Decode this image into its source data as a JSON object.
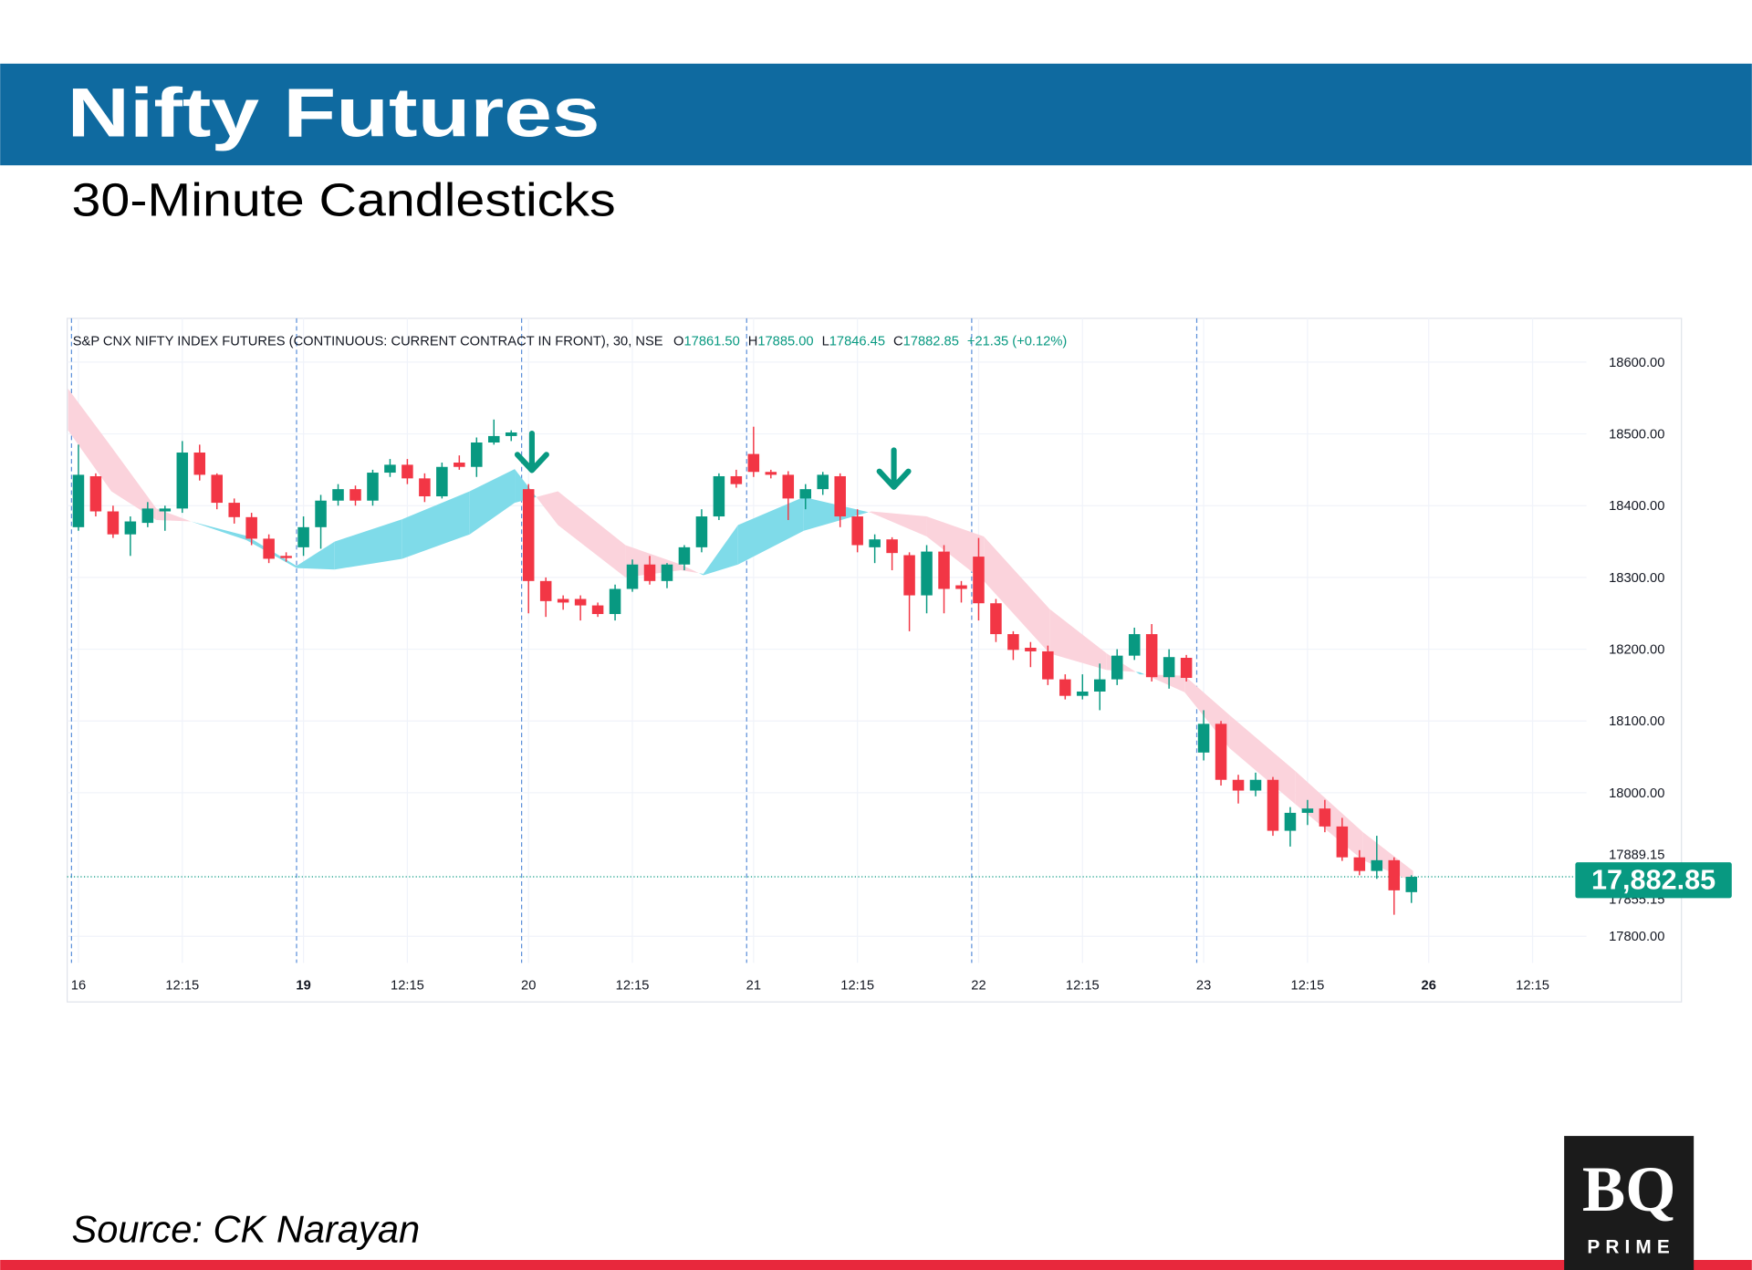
{
  "chart_data": {
    "type": "candlestick",
    "title": "Nifty Futures",
    "subtitle": "30-Minute Candlesticks",
    "instrument": "S&P CNX NIFTY INDEX FUTURES (CONTINUOUS: CURRENT CONTRACT IN FRONT), 30, NSE",
    "ohlc_legend": [
      {
        "label": "O",
        "value": "17861.50"
      },
      {
        "label": "H",
        "value": "17885.00"
      },
      {
        "label": "L",
        "value": "17846.45"
      },
      {
        "label": "C",
        "value": "17882.85"
      }
    ],
    "change": "+21.35 (+0.12%)",
    "up_color": "#089981",
    "down_color": "#f23645",
    "open": [
      18370,
      18441,
      18392,
      18360,
      18376,
      18392,
      18396,
      18474,
      18443,
      18404,
      18384,
      18354,
      18330,
      18342,
      18370,
      18407,
      18423,
      18407,
      18446,
      18457,
      18438,
      18413,
      18460,
      18454,
      18488,
      18497,
      18423,
      18295,
      18270,
      18270,
      18261,
      18249,
      18284,
      18318,
      18295,
      18318,
      18342,
      18385,
      18441,
      18472,
      18447,
      18443,
      18410,
      18423,
      18441,
      18385,
      18342,
      18353,
      18331,
      18275,
      18336,
      18289,
      18329,
      18264,
      18221,
      18202,
      18197,
      18158,
      18135,
      18141,
      18158,
      18191,
      18221,
      18161,
      18188,
      18056,
      18096,
      18018,
      18003,
      18018,
      17947,
      17972,
      17978,
      17953,
      17910,
      17891,
      17906,
      17861.5
    ],
    "high": [
      18485,
      18445,
      18400,
      18385,
      18405,
      18400,
      18490,
      18485,
      18445,
      18410,
      18390,
      18360,
      18335,
      18385,
      18415,
      18430,
      18428,
      18450,
      18465,
      18465,
      18445,
      18460,
      18470,
      18495,
      18520,
      18505,
      18430,
      18300,
      18275,
      18275,
      18265,
      18290,
      18325,
      18330,
      18320,
      18345,
      18395,
      18445,
      18450,
      18510,
      18450,
      18448,
      18430,
      18447,
      18445,
      18395,
      18360,
      18356,
      18335,
      18345,
      18345,
      18295,
      18355,
      18270,
      18225,
      18210,
      18205,
      18165,
      18165,
      18180,
      18200,
      18230,
      18235,
      18200,
      18192,
      18115,
      18100,
      18025,
      18028,
      18022,
      17980,
      17990,
      17990,
      17965,
      17920,
      17940,
      17910,
      17885
    ],
    "low": [
      18365,
      18385,
      18355,
      18330,
      18370,
      18365,
      18390,
      18435,
      18395,
      18375,
      18345,
      18320,
      18322,
      18330,
      18340,
      18400,
      18400,
      18400,
      18440,
      18430,
      18405,
      18410,
      18450,
      18440,
      18485,
      18490,
      18250,
      18245,
      18255,
      18240,
      18245,
      18240,
      18280,
      18290,
      18285,
      18310,
      18335,
      18380,
      18425,
      18440,
      18438,
      18380,
      18395,
      18415,
      18370,
      18335,
      18320,
      18310,
      18225,
      18250,
      18250,
      18265,
      18240,
      18210,
      18185,
      18175,
      18150,
      18130,
      18130,
      18115,
      18150,
      18185,
      18155,
      18145,
      18155,
      18045,
      18010,
      17985,
      17995,
      17940,
      17925,
      17955,
      17945,
      17905,
      17885,
      17880,
      17830,
      17846.45
    ],
    "close": [
      18443,
      18392,
      18360,
      18378,
      18396,
      18396,
      18474,
      18443,
      18404,
      18384,
      18354,
      18326,
      18327,
      18370,
      18407,
      18423,
      18407,
      18446,
      18457,
      18438,
      18413,
      18454,
      18454,
      18488,
      18497,
      18502,
      18295,
      18267,
      18265,
      18261,
      18249,
      18284,
      18318,
      18295,
      18318,
      18342,
      18385,
      18441,
      18430,
      18447,
      18443,
      18410,
      18423,
      18443,
      18385,
      18345,
      18353,
      18334,
      18275,
      18336,
      18284,
      18284,
      18264,
      18221,
      18199,
      18197,
      18158,
      18135,
      18141,
      18158,
      18191,
      18221,
      18161,
      18189,
      18160,
      18096,
      18018,
      18003,
      18018,
      17947,
      17972,
      17978,
      17953,
      17910,
      17891,
      17906,
      17864,
      17882.85
    ],
    "ribbon": {
      "x": [
        -0.6,
        1.9,
        4.5,
        6.5,
        9.7,
        12.6,
        14.8,
        18.7,
        22.6,
        25.2,
        27.7,
        31.6,
        34.8,
        36.1,
        38.1,
        41.9,
        45.8,
        49.0,
        52.3,
        56.1,
        59.4,
        61.3,
        63.9,
        66.5,
        70.3,
        74.2,
        77.1
      ],
      "fast": [
        18505,
        18420,
        18380,
        18378,
        18358,
        18316,
        18350,
        18381,
        18420,
        18451,
        18373,
        18300,
        18310,
        18305,
        18373,
        18412,
        18390,
        18357,
        18295,
        18194,
        18171,
        18168,
        18140,
        18062,
        17984,
        17906,
        17876
      ],
      "slow": [
        18563,
        18482,
        18396,
        18378,
        18352,
        18313,
        18311,
        18326,
        18360,
        18404,
        18420,
        18345,
        18318,
        18303,
        18318,
        18365,
        18392,
        18385,
        18357,
        18256,
        18194,
        18165,
        18163,
        18108,
        18030,
        17945,
        17891
      ],
      "up_color": "#7fdbe9",
      "down_color": "#fbd3dc"
    },
    "xlim": [
      -0.65,
      92.6
    ],
    "ylim": [
      17763,
      18661
    ],
    "xticks": [
      {
        "value": 0,
        "label": "16"
      },
      {
        "value": 6,
        "label": "12:15"
      },
      {
        "value": 13,
        "label": "19"
      },
      {
        "value": 19,
        "label": "12:15"
      },
      {
        "value": 26,
        "label": "20"
      },
      {
        "value": 32,
        "label": "12:15"
      },
      {
        "value": 39,
        "label": "21"
      },
      {
        "value": 45,
        "label": "12:15"
      },
      {
        "value": 52,
        "label": "22"
      },
      {
        "value": 58,
        "label": "12:15"
      },
      {
        "value": 65,
        "label": "23"
      },
      {
        "value": 71,
        "label": "12:15"
      },
      {
        "value": 78,
        "label": "26"
      },
      {
        "value": 84,
        "label": "12:15"
      }
    ],
    "yticks": [
      {
        "value": 17800,
        "label": "17800.00"
      },
      {
        "value": 18000,
        "label": "18000.00"
      },
      {
        "value": 18100,
        "label": "18100.00"
      },
      {
        "value": 18200,
        "label": "18200.00"
      },
      {
        "value": 18300,
        "label": "18300.00"
      },
      {
        "value": 18400,
        "label": "18400.00"
      },
      {
        "value": 18500,
        "label": "18500.00"
      },
      {
        "value": 18600,
        "label": "18600.00"
      }
    ],
    "grid": true,
    "last_price": {
      "value": 17882.85,
      "label": "17,882.85"
    },
    "price_labels": [
      "17889.15",
      "17855.15"
    ]
  },
  "source": "Source: CK Narayan",
  "logo": {
    "mark": "BQ",
    "word": "PRIME"
  }
}
